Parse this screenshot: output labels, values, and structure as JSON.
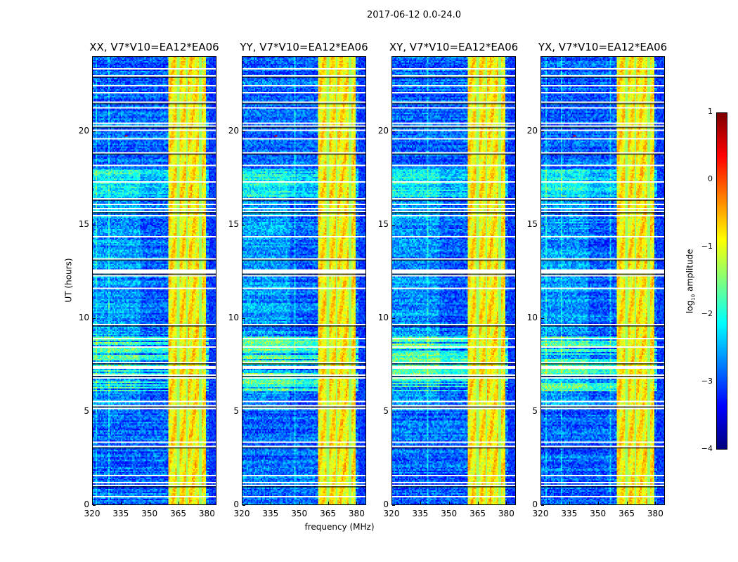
{
  "chart_data": {
    "type": "heatmap",
    "title": "2017-06-12 0.0-24.0",
    "xlabel": "frequency (MHz)",
    "ylabel": "UT (hours)",
    "xlim": [
      320,
      385
    ],
    "ylim": [
      0,
      24
    ],
    "xticks": [
      "320",
      "335",
      "350",
      "365",
      "380"
    ],
    "xtick_values": [
      320,
      335,
      350,
      365,
      380
    ],
    "yticks": [
      "0",
      "5",
      "10",
      "15",
      "20"
    ],
    "ytick_values": [
      0,
      5,
      10,
      15,
      20
    ],
    "colormap": "jet",
    "panels": [
      {
        "title": "XX, V7*V10=EA12*EA06",
        "seed": 11
      },
      {
        "title": "YY, V7*V10=EA12*EA06",
        "seed": 23
      },
      {
        "title": "XY, V7*V10=EA12*EA06",
        "seed": 37
      },
      {
        "title": "YX, V7*V10=EA12*EA06",
        "seed": 51
      }
    ],
    "rfi_band_mhz": [
      360,
      380
    ],
    "flagged_hours": [
      0.35,
      1.0,
      1.1,
      1.5,
      3.1,
      3.3,
      5.1,
      5.3,
      5.5,
      6.8,
      6.9,
      7.3,
      7.4,
      7.6,
      8.4,
      8.9,
      9.6,
      11.6,
      12.3,
      12.4,
      12.5,
      12.6,
      13.2,
      14.4,
      15.5,
      15.7,
      15.9,
      16.1,
      16.4,
      17.3,
      18.2,
      18.9,
      19.6,
      20.1,
      20.3,
      20.5,
      21.3,
      21.6,
      22.1,
      22.5,
      23.0,
      23.4
    ],
    "colorbar": {
      "label_base": "log",
      "label_sub": "10",
      "label_rest": " amplitude",
      "range": [
        -4,
        1
      ],
      "ticks": [
        "1",
        "0",
        "−1",
        "−2",
        "−3",
        "−4"
      ],
      "tick_values": [
        1,
        0,
        -1,
        -2,
        -3,
        -4
      ]
    }
  }
}
